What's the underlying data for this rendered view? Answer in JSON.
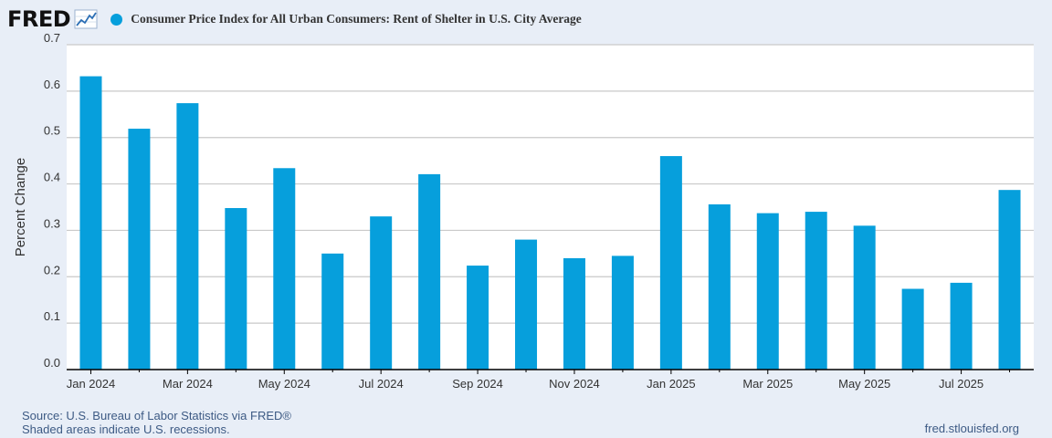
{
  "logo": {
    "text": "FRED"
  },
  "chart_data": {
    "type": "bar",
    "title": "Consumer Price Index for All Urban Consumers: Rent of Shelter in U.S. City Average",
    "ylabel": "Percent Change",
    "xlabel": "",
    "ylim": [
      0,
      0.7
    ],
    "yticks": [
      "0.0",
      "0.1",
      "0.2",
      "0.3",
      "0.4",
      "0.5",
      "0.6",
      "0.7"
    ],
    "grid": true,
    "legend": "top-left",
    "color": "#069fdc",
    "categories": [
      "Jan 2024",
      "Feb 2024",
      "Mar 2024",
      "Apr 2024",
      "May 2024",
      "Jun 2024",
      "Jul 2024",
      "Aug 2024",
      "Sep 2024",
      "Oct 2024",
      "Nov 2024",
      "Dec 2024",
      "Jan 2025",
      "Feb 2025",
      "Mar 2025",
      "Apr 2025",
      "May 2025",
      "Jun 2025",
      "Jul 2025",
      "Aug 2025"
    ],
    "values": [
      0.632,
      0.519,
      0.574,
      0.348,
      0.434,
      0.25,
      0.33,
      0.421,
      0.224,
      0.28,
      0.24,
      0.245,
      0.46,
      0.356,
      0.337,
      0.34,
      0.31,
      0.174,
      0.187,
      0.387
    ],
    "xtick_labels": [
      "Jan 2024",
      "Mar 2024",
      "May 2024",
      "Jul 2024",
      "Sep 2024",
      "Nov 2024",
      "Jan 2025",
      "Mar 2025",
      "May 2025",
      "Jul 2025"
    ]
  },
  "footer": {
    "source": "Source: U.S. Bureau of Labor Statistics via FRED®",
    "recession_note": "Shaded areas indicate U.S. recessions.",
    "site": "fred.stlouisfed.org"
  }
}
